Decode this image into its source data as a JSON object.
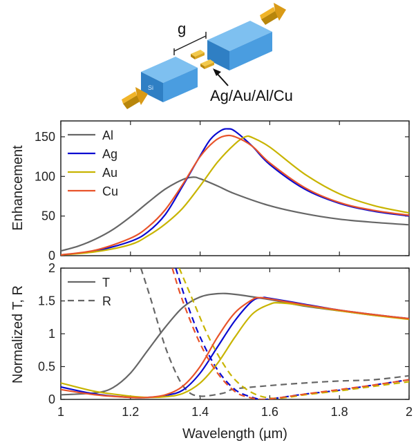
{
  "schematic": {
    "gap_label": "g",
    "material_label": "Ag/Au/Al/Cu",
    "block_label": "Si",
    "colors": {
      "waveguide": "#3a8fd8",
      "waveguide_top": "#69b3ec",
      "arrow": "#d4a017",
      "antenna": "#e0b020"
    }
  },
  "chart_data": [
    {
      "type": "line",
      "xlabel": "",
      "ylabel": "Enhancement",
      "xlim": [
        1,
        2
      ],
      "ylim": [
        0,
        170
      ],
      "yticks": [
        0,
        50,
        100,
        150
      ],
      "xticks_shown": false,
      "legend_position": "top-left",
      "series": [
        {
          "name": "Al",
          "color": "#666666",
          "style": "solid",
          "x": [
            1.0,
            1.05,
            1.1,
            1.15,
            1.2,
            1.25,
            1.3,
            1.35,
            1.38,
            1.4,
            1.45,
            1.5,
            1.6,
            1.7,
            1.8,
            1.9,
            2.0
          ],
          "y": [
            6,
            12,
            21,
            33,
            49,
            67,
            84,
            96,
            99,
            97,
            88,
            78,
            63,
            53,
            46,
            42,
            39
          ]
        },
        {
          "name": "Ag",
          "color": "#0a0ad0",
          "style": "solid",
          "x": [
            1.0,
            1.1,
            1.2,
            1.25,
            1.3,
            1.35,
            1.4,
            1.43,
            1.46,
            1.48,
            1.5,
            1.55,
            1.6,
            1.7,
            1.8,
            1.9,
            2.0
          ],
          "y": [
            1,
            6,
            18,
            30,
            52,
            88,
            126,
            147,
            158,
            160,
            157,
            138,
            115,
            84,
            66,
            56,
            50
          ]
        },
        {
          "name": "Au",
          "color": "#c8b400",
          "style": "solid",
          "x": [
            1.0,
            1.1,
            1.2,
            1.25,
            1.3,
            1.35,
            1.4,
            1.45,
            1.5,
            1.53,
            1.55,
            1.6,
            1.7,
            1.8,
            1.9,
            2.0
          ],
          "y": [
            1,
            5,
            14,
            25,
            40,
            60,
            88,
            118,
            141,
            150,
            149,
            137,
            103,
            78,
            63,
            54
          ]
        },
        {
          "name": "Cu",
          "color": "#e8532a",
          "style": "solid",
          "x": [
            1.0,
            1.1,
            1.2,
            1.25,
            1.3,
            1.35,
            1.4,
            1.44,
            1.47,
            1.5,
            1.55,
            1.6,
            1.7,
            1.8,
            1.9,
            2.0
          ],
          "y": [
            1,
            7,
            22,
            36,
            58,
            90,
            125,
            144,
            151,
            150,
            138,
            117,
            86,
            67,
            57,
            51
          ]
        }
      ]
    },
    {
      "type": "line",
      "xlabel": "Wavelength (µm)",
      "ylabel": "Normalized T, R",
      "xlim": [
        1,
        2
      ],
      "ylim": [
        0,
        2
      ],
      "xticks": [
        1,
        1.2,
        1.4,
        1.6,
        1.8,
        2
      ],
      "yticks": [
        0,
        0.5,
        1,
        1.5,
        2
      ],
      "ytick_labels": [
        "0",
        "0.5",
        "1",
        "1.5",
        "2"
      ],
      "xtick_labels": [
        "1",
        "1.2",
        "1.4",
        "1.6",
        "1.8",
        "2"
      ],
      "legend_position": "top-left",
      "legend_entries": [
        {
          "label": "T",
          "style": "solid"
        },
        {
          "label": "R",
          "style": "dashed"
        }
      ],
      "series": [
        {
          "color": "#666666",
          "style": "solid",
          "x": [
            1.0,
            1.1,
            1.15,
            1.2,
            1.25,
            1.3,
            1.35,
            1.4,
            1.45,
            1.5,
            1.6,
            1.7,
            1.8,
            1.9,
            2.0
          ],
          "y": [
            0.07,
            0.1,
            0.18,
            0.4,
            0.75,
            1.1,
            1.4,
            1.56,
            1.61,
            1.6,
            1.52,
            1.42,
            1.35,
            1.28,
            1.23
          ]
        },
        {
          "color": "#666666",
          "style": "dashed",
          "x": [
            1.23,
            1.26,
            1.3,
            1.34,
            1.37,
            1.4,
            1.43,
            1.47,
            1.5,
            1.6,
            1.7,
            1.8,
            1.9,
            2.0
          ],
          "y": [
            2.0,
            1.5,
            0.8,
            0.3,
            0.1,
            0.05,
            0.06,
            0.1,
            0.16,
            0.21,
            0.25,
            0.28,
            0.3,
            0.36
          ]
        },
        {
          "color": "#0a0ad0",
          "style": "solid",
          "x": [
            1.0,
            1.1,
            1.2,
            1.25,
            1.3,
            1.35,
            1.4,
            1.45,
            1.5,
            1.55,
            1.58,
            1.6,
            1.7,
            1.8,
            1.9,
            2.0
          ],
          "y": [
            0.19,
            0.08,
            0.03,
            0.03,
            0.06,
            0.14,
            0.4,
            0.8,
            1.2,
            1.5,
            1.55,
            1.54,
            1.45,
            1.36,
            1.29,
            1.23
          ]
        },
        {
          "color": "#0a0ad0",
          "style": "dashed",
          "x": [
            1.33,
            1.36,
            1.4,
            1.45,
            1.5,
            1.55,
            1.58,
            1.62,
            1.7,
            1.8,
            1.9,
            2.0
          ],
          "y": [
            2.0,
            1.5,
            0.95,
            0.45,
            0.15,
            0.03,
            0.0,
            0.02,
            0.08,
            0.14,
            0.22,
            0.3
          ]
        },
        {
          "color": "#c8b400",
          "style": "solid",
          "x": [
            1.0,
            1.1,
            1.2,
            1.25,
            1.3,
            1.35,
            1.4,
            1.45,
            1.5,
            1.55,
            1.6,
            1.63,
            1.7,
            1.8,
            1.9,
            2.0
          ],
          "y": [
            0.25,
            0.12,
            0.05,
            0.03,
            0.04,
            0.09,
            0.25,
            0.55,
            0.95,
            1.3,
            1.45,
            1.47,
            1.43,
            1.35,
            1.28,
            1.22
          ]
        },
        {
          "color": "#c8b400",
          "style": "dashed",
          "x": [
            1.34,
            1.38,
            1.42,
            1.46,
            1.5,
            1.55,
            1.6,
            1.65,
            1.7,
            1.8,
            1.9,
            2.0
          ],
          "y": [
            2.0,
            1.5,
            1.0,
            0.6,
            0.3,
            0.1,
            0.02,
            0.03,
            0.07,
            0.13,
            0.2,
            0.27
          ]
        },
        {
          "color": "#e8532a",
          "style": "solid",
          "x": [
            1.0,
            1.1,
            1.2,
            1.25,
            1.3,
            1.35,
            1.4,
            1.45,
            1.5,
            1.55,
            1.57,
            1.6,
            1.7,
            1.8,
            1.9,
            2.0
          ],
          "y": [
            0.15,
            0.07,
            0.03,
            0.03,
            0.07,
            0.2,
            0.5,
            0.95,
            1.32,
            1.52,
            1.55,
            1.53,
            1.44,
            1.36,
            1.29,
            1.23
          ]
        },
        {
          "color": "#e8532a",
          "style": "dashed",
          "x": [
            1.32,
            1.35,
            1.4,
            1.45,
            1.5,
            1.54,
            1.58,
            1.62,
            1.7,
            1.8,
            1.9,
            2.0
          ],
          "y": [
            2.0,
            1.5,
            0.85,
            0.4,
            0.12,
            0.03,
            0.0,
            0.02,
            0.08,
            0.15,
            0.22,
            0.3
          ]
        }
      ]
    }
  ]
}
